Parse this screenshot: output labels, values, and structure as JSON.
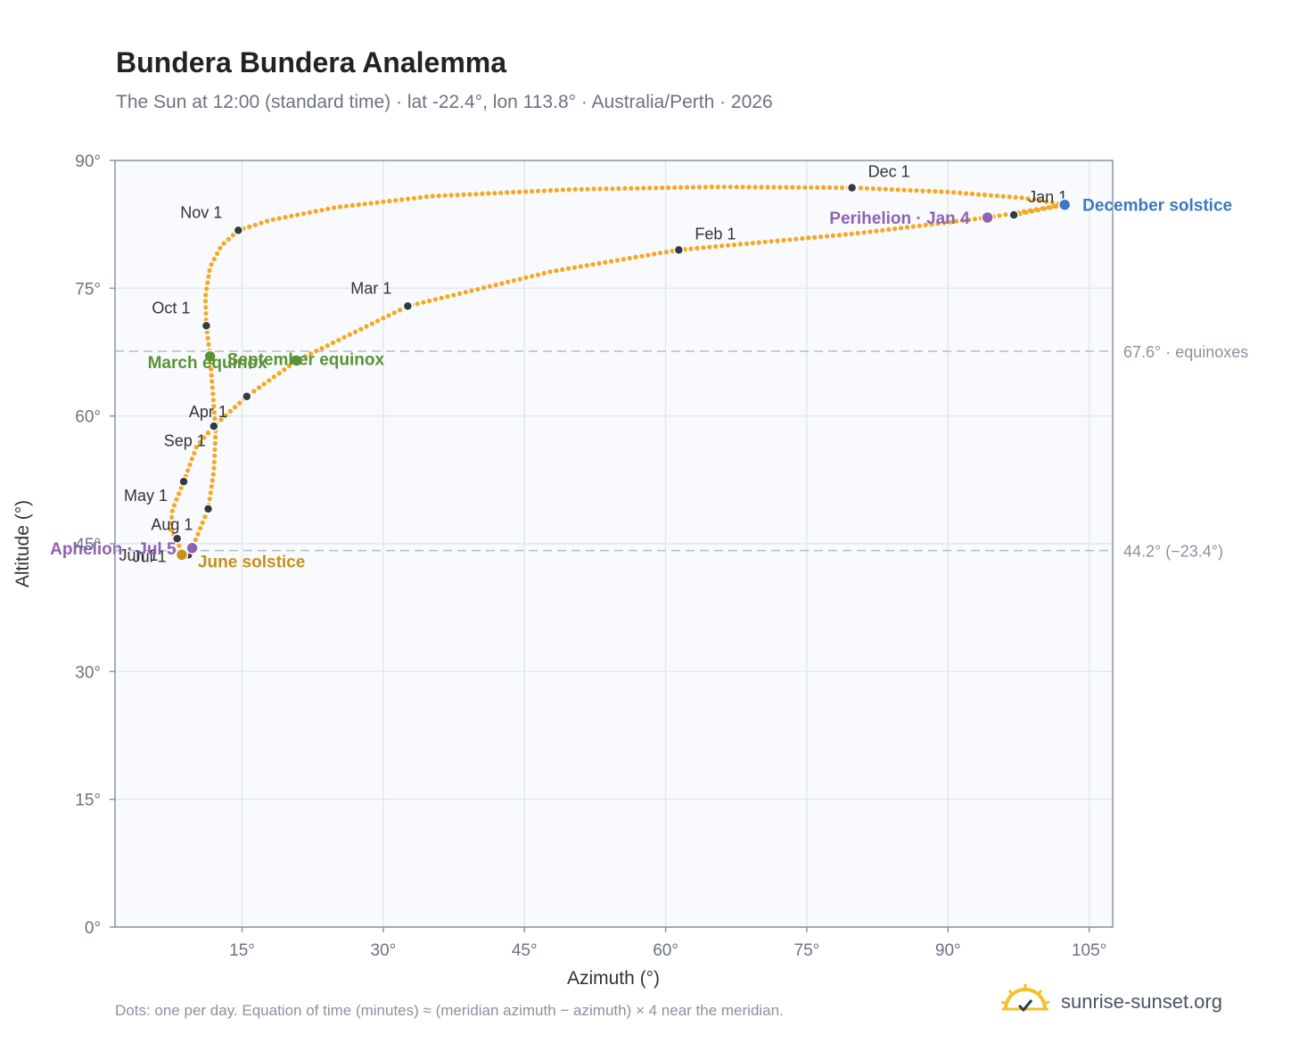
{
  "title": "Bundera Bundera Analemma",
  "subtitle": "The Sun at 12:00 (standard time) · lat -22.4°, lon 113.8° · Australia/Perth · 2026",
  "footnote": "Dots: one per day. Equation of time (minutes) ≈ (meridian azimuth − azimuth) × 4 near the meridian.",
  "brand": {
    "name": "sunrise-sunset.org",
    "icon": "sun-checkmark-icon"
  },
  "chart_data": {
    "type": "scatter",
    "xlabel": "Azimuth (°)",
    "ylabel": "Altitude (°)",
    "xlim": [
      1.5,
      107.5
    ],
    "ylim": [
      0,
      90
    ],
    "x_ticks": [
      15,
      30,
      45,
      60,
      75,
      90,
      105
    ],
    "x_tick_labels": [
      "15°",
      "30°",
      "45°",
      "60°",
      "75°",
      "90°",
      "105°"
    ],
    "y_ticks": [
      0,
      15,
      30,
      45,
      60,
      75,
      90
    ],
    "y_tick_labels": [
      "0°",
      "15°",
      "30°",
      "45°",
      "60°",
      "75°",
      "90°"
    ],
    "grid": true,
    "reference_lines": [
      {
        "y": 67.6,
        "label": "67.6° · equinoxes"
      },
      {
        "y": 44.2,
        "label": "44.2° (−23.4°)"
      }
    ],
    "month_markers": [
      {
        "label": "Jan 1",
        "x": 97.0,
        "y": 83.6
      },
      {
        "label": "Feb 1",
        "x": 61.4,
        "y": 79.5
      },
      {
        "label": "Mar 1",
        "x": 32.6,
        "y": 72.9
      },
      {
        "label": "Apr 1",
        "x": 12.0,
        "y": 58.8
      },
      {
        "label": "May 1",
        "x": 8.8,
        "y": 52.3
      },
      {
        "label": "Jun 1",
        "x": 11.4,
        "y": 49.1
      },
      {
        "label": "Jul 1",
        "x": 8.1,
        "y": 45.6
      },
      {
        "label": "Aug 1",
        "x": 9.3,
        "y": 43.7
      },
      {
        "label": "Sep 1",
        "x": 15.5,
        "y": 62.3
      },
      {
        "label": "Oct 1",
        "x": 11.2,
        "y": 70.6
      },
      {
        "label": "Nov 1",
        "x": 14.6,
        "y": 81.8
      },
      {
        "label": "Dec 1",
        "x": 79.8,
        "y": 86.8
      }
    ],
    "events": [
      {
        "label": "December solstice",
        "x": 102.4,
        "y": 84.8,
        "color": "#3a78c3"
      },
      {
        "label": "Perihelion · Jan 4",
        "x": 94.2,
        "y": 83.3,
        "color": "#8e63b5"
      },
      {
        "label": "March equinox",
        "x": 11.6,
        "y": 67.0,
        "color": "#5a9234"
      },
      {
        "label": "September equinox",
        "x": 20.8,
        "y": 66.5,
        "color": "#5a9234"
      },
      {
        "label": "June solstice",
        "x": 8.6,
        "y": 43.7,
        "color": "#c8901c"
      },
      {
        "label": "Aphelion · Jul 5",
        "x": 9.7,
        "y": 44.5,
        "color": "#8e63b5"
      }
    ],
    "analemma_path": [
      {
        "x": 97.0,
        "y": 83.6
      },
      {
        "x": 101.0,
        "y": 84.5
      },
      {
        "x": 102.4,
        "y": 84.8
      },
      {
        "x": 94.2,
        "y": 83.3
      },
      {
        "x": 80.0,
        "y": 81.4
      },
      {
        "x": 61.4,
        "y": 79.5
      },
      {
        "x": 48.0,
        "y": 77.0
      },
      {
        "x": 32.6,
        "y": 72.9
      },
      {
        "x": 20.8,
        "y": 66.5
      },
      {
        "x": 15.5,
        "y": 62.3
      },
      {
        "x": 12.0,
        "y": 58.8
      },
      {
        "x": 10.2,
        "y": 56.5
      },
      {
        "x": 8.8,
        "y": 52.3
      },
      {
        "x": 7.6,
        "y": 49.0
      },
      {
        "x": 7.4,
        "y": 46.5
      },
      {
        "x": 8.1,
        "y": 45.6
      },
      {
        "x": 8.6,
        "y": 43.7
      },
      {
        "x": 9.7,
        "y": 44.5
      },
      {
        "x": 11.4,
        "y": 49.1
      },
      {
        "x": 12.0,
        "y": 53.5
      },
      {
        "x": 12.2,
        "y": 58.2
      },
      {
        "x": 11.6,
        "y": 67.0
      },
      {
        "x": 11.2,
        "y": 70.6
      },
      {
        "x": 11.1,
        "y": 74.0
      },
      {
        "x": 11.6,
        "y": 77.5
      },
      {
        "x": 12.8,
        "y": 80.0
      },
      {
        "x": 14.6,
        "y": 81.8
      },
      {
        "x": 18.0,
        "y": 83.0
      },
      {
        "x": 25.0,
        "y": 84.5
      },
      {
        "x": 35.0,
        "y": 85.8
      },
      {
        "x": 50.0,
        "y": 86.6
      },
      {
        "x": 65.0,
        "y": 86.9
      },
      {
        "x": 79.8,
        "y": 86.8
      },
      {
        "x": 90.0,
        "y": 86.3
      },
      {
        "x": 98.0,
        "y": 85.6
      },
      {
        "x": 102.4,
        "y": 84.8
      }
    ]
  }
}
